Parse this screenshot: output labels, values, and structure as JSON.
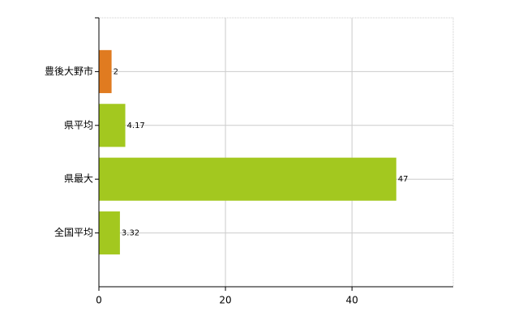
{
  "chart_data": {
    "type": "bar",
    "orientation": "horizontal",
    "categories": [
      "豊後大野市",
      "県平均",
      "県最大",
      "全国平均"
    ],
    "values": [
      2,
      4.17,
      47,
      3.32
    ],
    "colors": [
      "#e07b20",
      "#a3c81f",
      "#a3c81f",
      "#a3c81f"
    ],
    "xlim": [
      0,
      56
    ],
    "xticks": [
      0,
      20,
      40
    ],
    "grid": true
  }
}
